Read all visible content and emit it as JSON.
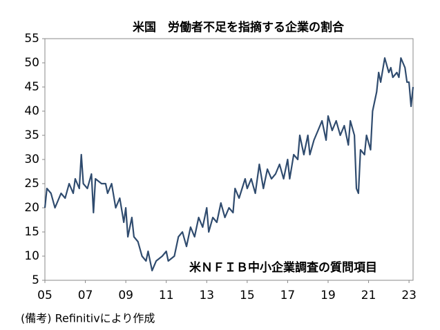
{
  "chart_data": {
    "type": "line",
    "title": "米国　労働者不足を指摘する企業の割合",
    "annotation": "米ＮＦＩＢ中小企業調査の質問項目",
    "source": "(備考) Refinitivにより作成",
    "x": [
      2005.0,
      2005.1,
      2005.3,
      2005.5,
      2005.8,
      2006.0,
      2006.2,
      2006.4,
      2006.5,
      2006.7,
      2006.8,
      2006.9,
      2007.1,
      2007.3,
      2007.4,
      2007.5,
      2007.8,
      2008.0,
      2008.1,
      2008.3,
      2008.5,
      2008.7,
      2008.9,
      2009.0,
      2009.1,
      2009.3,
      2009.4,
      2009.6,
      2009.8,
      2010.0,
      2010.1,
      2010.3,
      2010.5,
      2010.8,
      2011.0,
      2011.1,
      2011.4,
      2011.6,
      2011.8,
      2012.0,
      2012.2,
      2012.4,
      2012.6,
      2012.8,
      2013.0,
      2013.1,
      2013.3,
      2013.5,
      2013.7,
      2013.9,
      2014.1,
      2014.3,
      2014.4,
      2014.6,
      2014.9,
      2015.0,
      2015.2,
      2015.4,
      2015.6,
      2015.8,
      2016.0,
      2016.2,
      2016.4,
      2016.6,
      2016.8,
      2017.0,
      2017.1,
      2017.3,
      2017.5,
      2017.6,
      2017.8,
      2018.0,
      2018.1,
      2018.3,
      2018.5,
      2018.7,
      2018.9,
      2019.0,
      2019.2,
      2019.4,
      2019.6,
      2019.8,
      2020.0,
      2020.1,
      2020.3,
      2020.4,
      2020.5,
      2020.6,
      2020.8,
      2020.9,
      2021.1,
      2021.2,
      2021.4,
      2021.5,
      2021.6,
      2021.8,
      2022.0,
      2022.1,
      2022.2,
      2022.4,
      2022.5,
      2022.6,
      2022.8,
      2022.9,
      2023.0,
      2023.1,
      2023.2
    ],
    "series": [
      {
        "color": "#2f4b6e",
        "values": [
          20,
          24,
          23,
          20,
          23,
          22,
          25,
          23,
          26,
          24,
          31,
          25,
          24,
          27,
          19,
          26,
          25,
          25,
          23,
          25,
          20,
          22,
          17,
          20,
          14,
          18,
          14,
          13,
          10,
          9,
          11,
          7,
          9,
          10,
          11,
          9,
          10,
          14,
          15,
          12,
          16,
          14,
          18,
          16,
          20,
          15,
          18,
          17,
          21,
          18,
          20,
          19,
          24,
          22,
          26,
          24,
          26,
          23,
          29,
          24,
          28,
          26,
          27,
          29,
          26,
          30,
          26,
          31,
          30,
          35,
          31,
          35,
          31,
          34,
          36,
          38,
          34,
          39,
          36,
          38,
          35,
          37,
          33,
          38,
          35,
          24,
          23,
          32,
          31,
          35,
          32,
          40,
          44,
          48,
          46,
          51,
          48,
          49,
          47,
          48,
          47,
          51,
          49,
          46,
          46,
          41,
          45
        ]
      }
    ],
    "xlim": [
      2005,
      2023.2
    ],
    "xticks": [
      {
        "value": 2005,
        "label": "05"
      },
      {
        "value": 2007,
        "label": "07"
      },
      {
        "value": 2009,
        "label": "09"
      },
      {
        "value": 2011,
        "label": "11"
      },
      {
        "value": 2013,
        "label": "13"
      },
      {
        "value": 2015,
        "label": "15"
      },
      {
        "value": 2017,
        "label": "17"
      },
      {
        "value": 2019,
        "label": "19"
      },
      {
        "value": 2021,
        "label": "21"
      },
      {
        "value": 2023,
        "label": "23"
      }
    ],
    "ylim": [
      5,
      55
    ],
    "yticks": [
      5,
      10,
      15,
      20,
      25,
      30,
      35,
      40,
      45,
      50,
      55
    ],
    "grid": false
  }
}
